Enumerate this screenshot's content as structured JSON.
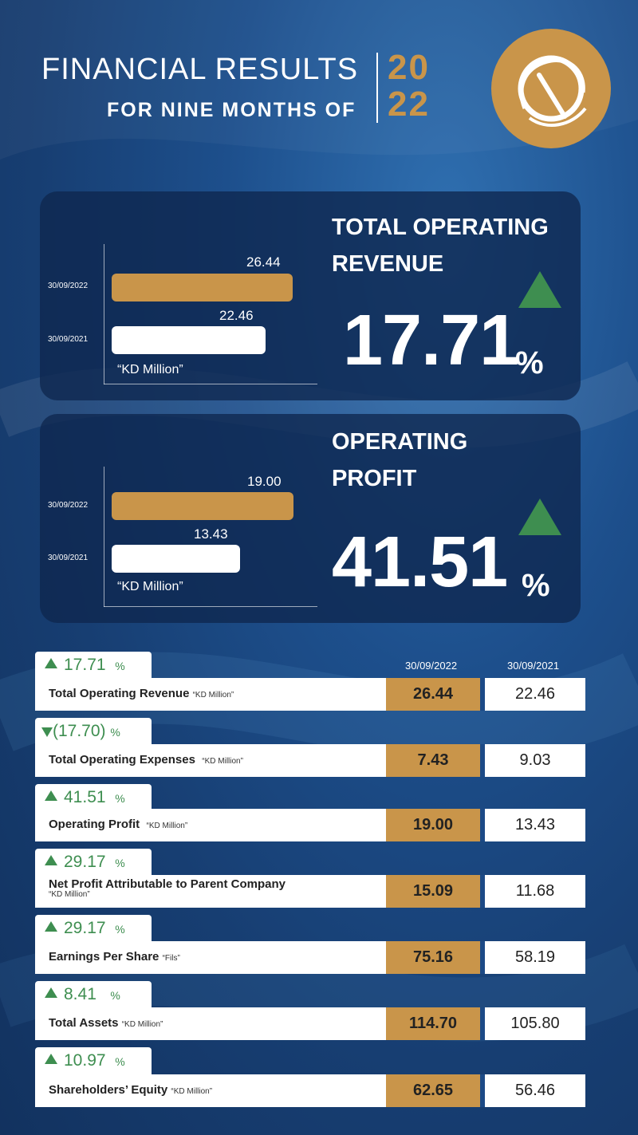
{
  "header": {
    "title": "FINANCIAL RESULTS",
    "subtitle": "FOR NINE MONTHS OF",
    "year_top": "20",
    "year_bottom": "22"
  },
  "logo": {
    "icon": "company-logo-emblem"
  },
  "colors": {
    "gold": "#c9954a",
    "green": "#3e8e50",
    "navy": "#12325f"
  },
  "chart_data": [
    {
      "type": "bar",
      "orientation": "horizontal",
      "title": "TOTAL OPERATING REVENUE",
      "title_line1": "TOTAL OPERATING",
      "title_line2": "REVENUE",
      "categories": [
        "30/09/2022",
        "30/09/2021"
      ],
      "values": [
        26.44,
        22.46
      ],
      "value_labels": [
        "26.44",
        "22.46"
      ],
      "unit": "“KD Million”",
      "change_value": "17.71",
      "change_unit": "%",
      "change_direction": "up",
      "xlim": [
        0,
        35
      ]
    },
    {
      "type": "bar",
      "orientation": "horizontal",
      "title": "OPERATING PROFIT",
      "title_line1": "OPERATING",
      "title_line2": "PROFIT",
      "categories": [
        "30/09/2022",
        "30/09/2021"
      ],
      "values": [
        19.0,
        13.43
      ],
      "value_labels": [
        "19.00",
        "13.43"
      ],
      "unit": "“KD Million”",
      "change_value": "41.51",
      "change_unit": "%",
      "change_direction": "up",
      "xlim": [
        0,
        25
      ]
    }
  ],
  "table": {
    "col_current": "30/09/2022",
    "col_previous": "30/09/2021",
    "rows": [
      {
        "change": "17.71",
        "pct": "%",
        "direction": "up",
        "label": "Total Operating Revenue",
        "unit": "“KD Million”",
        "current": "26.44",
        "previous": "22.46"
      },
      {
        "change": "(17.70)",
        "pct": "%",
        "direction": "down",
        "label": "Total Operating Expenses",
        "unit": "“KD Million”",
        "current": "7.43",
        "previous": "9.03"
      },
      {
        "change": "41.51",
        "pct": "%",
        "direction": "up",
        "label": "Operating Profit",
        "unit": "“KD Million”",
        "current": "19.00",
        "previous": "13.43"
      },
      {
        "change": "29.17",
        "pct": "%",
        "direction": "up",
        "label": "Net Profit Attributable to Parent Company",
        "unit": "“KD Million”",
        "current": "15.09",
        "previous": "11.68"
      },
      {
        "change": "29.17",
        "pct": "%",
        "direction": "up",
        "label": "Earnings Per Share",
        "unit": "“Fils”",
        "current": "75.16",
        "previous": "58.19"
      },
      {
        "change": "8.41",
        "pct": "%",
        "direction": "up",
        "label": "Total Assets",
        "unit": "“KD Million”",
        "current": "114.70",
        "previous": "105.80"
      },
      {
        "change": "10.97",
        "pct": "%",
        "direction": "up",
        "label": "Shareholders’ Equity",
        "unit": "“KD Million”",
        "current": "62.65",
        "previous": "56.46"
      }
    ]
  }
}
